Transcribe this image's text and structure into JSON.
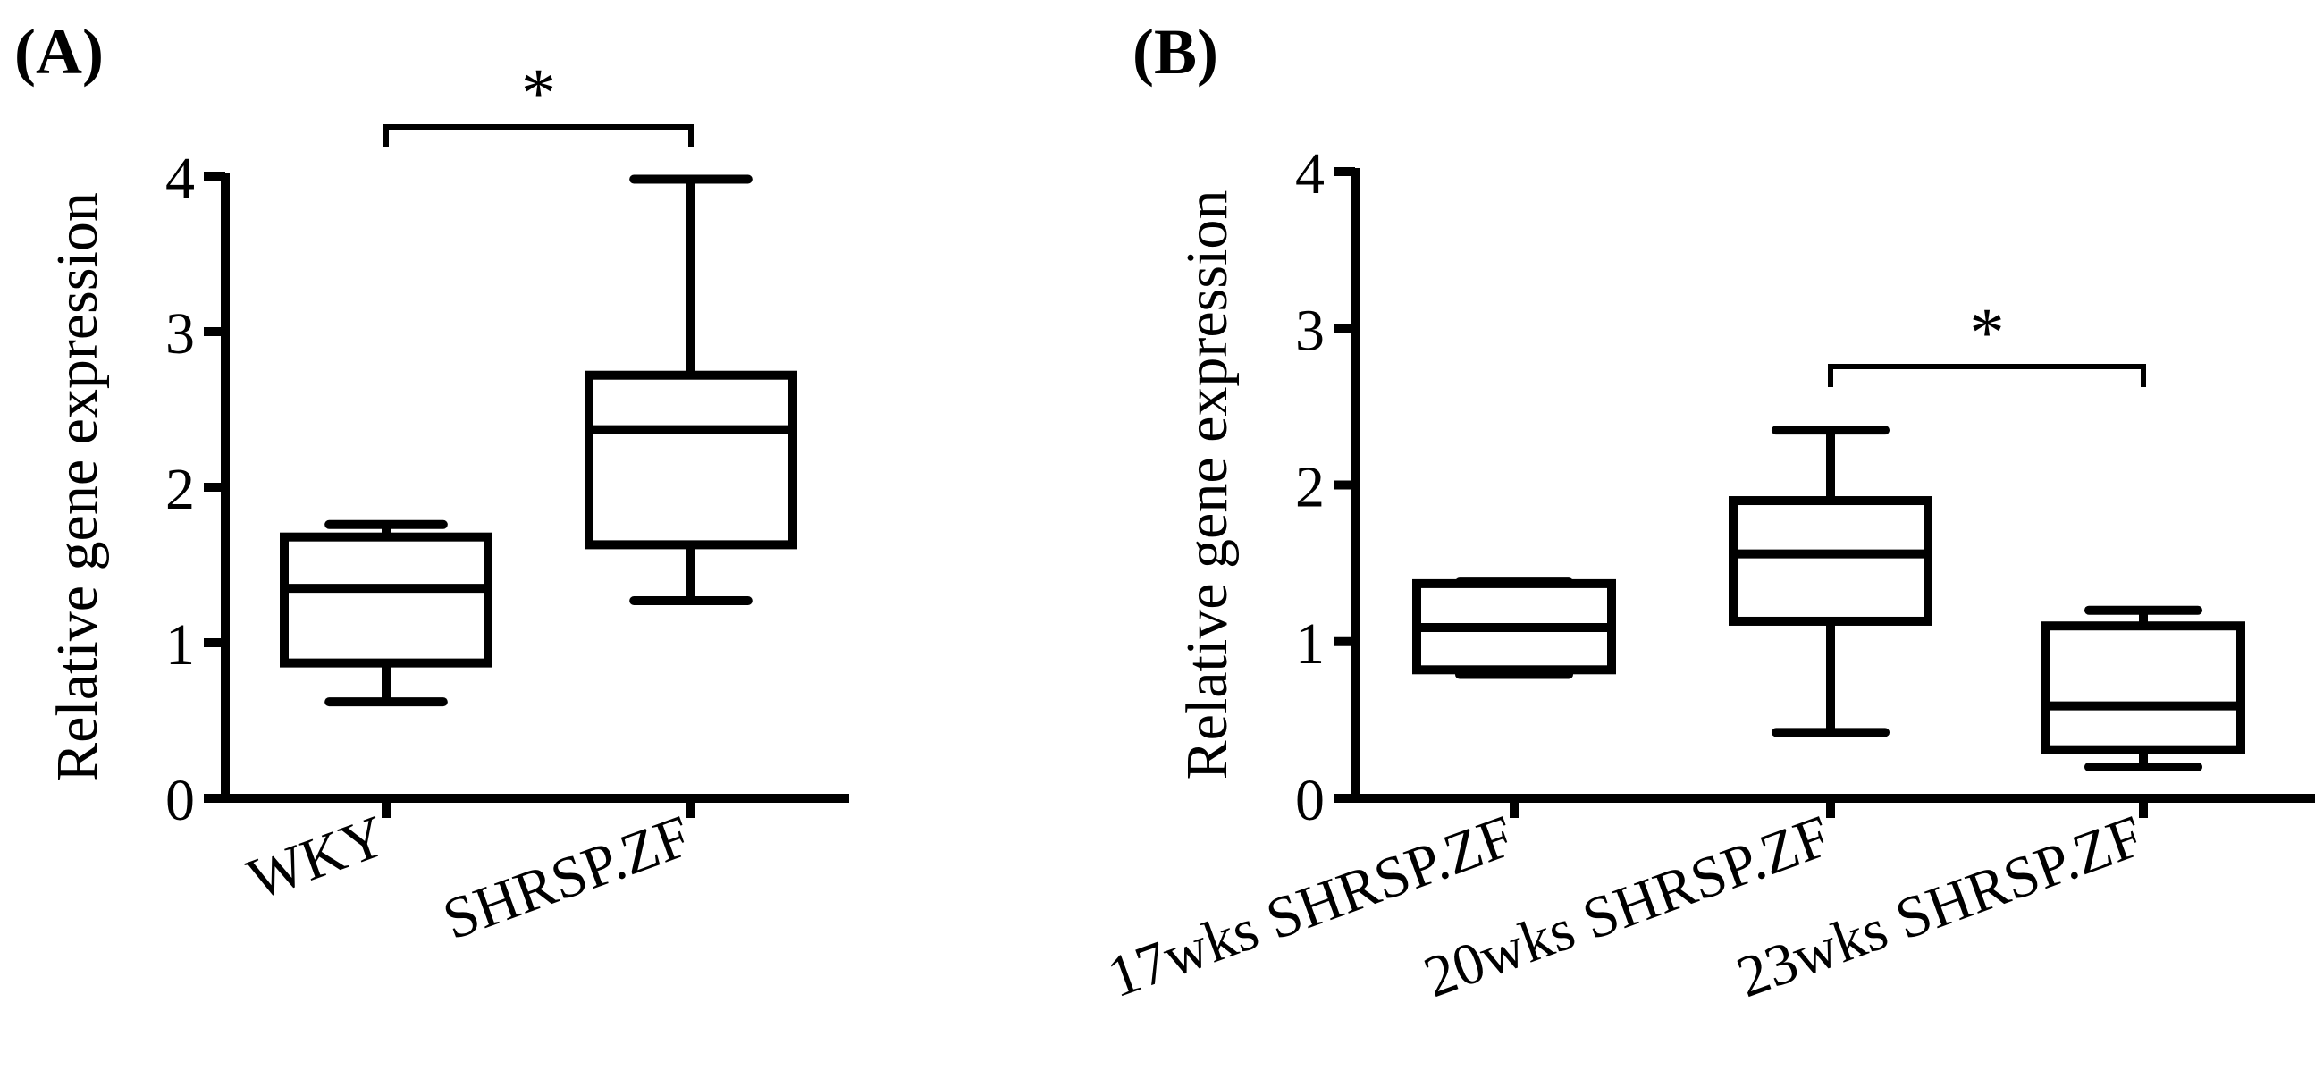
{
  "chart_data": [
    {
      "type": "boxplot",
      "panel_label": "(A)",
      "ylabel": "Relative gene expression",
      "ylim": [
        0,
        4
      ],
      "yticks": [
        0,
        1,
        2,
        3,
        4
      ],
      "ytick_labels": [
        "0",
        "1",
        "2",
        "3",
        "4"
      ],
      "categories": [
        "WKY",
        "SHRSP.ZF"
      ],
      "boxes": [
        {
          "name": "WKY",
          "min": 0.62,
          "q1": 0.87,
          "median": 1.35,
          "q3": 1.68,
          "max": 1.76
        },
        {
          "name": "SHRSP.ZF",
          "min": 1.27,
          "q1": 1.63,
          "median": 2.37,
          "q3": 2.72,
          "max": 3.98
        }
      ],
      "significance": [
        {
          "from": "WKY",
          "to": "SHRSP.ZF",
          "label": "*"
        }
      ]
    },
    {
      "type": "boxplot",
      "panel_label": "(B)",
      "ylabel": "Relative gene expression",
      "ylim": [
        0,
        4
      ],
      "yticks": [
        0,
        1,
        2,
        3,
        4
      ],
      "ytick_labels": [
        "0",
        "1",
        "2",
        "3",
        "4"
      ],
      "categories": [
        "17wks SHRSP.ZF",
        "20wks SHRSP.ZF",
        "23wks SHRSP.ZF"
      ],
      "boxes": [
        {
          "name": "17wks SHRSP.ZF",
          "min": 0.79,
          "q1": 0.82,
          "median": 1.09,
          "q3": 1.37,
          "max": 1.38
        },
        {
          "name": "20wks SHRSP.ZF",
          "min": 0.42,
          "q1": 1.13,
          "median": 1.56,
          "q3": 1.9,
          "max": 2.35
        },
        {
          "name": "23wks SHRSP.ZF",
          "min": 0.2,
          "q1": 0.31,
          "median": 0.59,
          "q3": 1.1,
          "max": 1.2
        }
      ],
      "significance": [
        {
          "from": "20wks SHRSP.ZF",
          "to": "23wks SHRSP.ZF",
          "label": "*"
        }
      ]
    }
  ]
}
